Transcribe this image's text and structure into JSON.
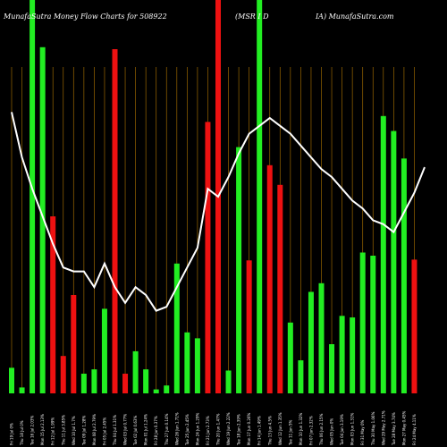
{
  "chart_data": {
    "type": "bar",
    "title_left": "MunafaSutra  Money Flow  Charts for 508922",
    "title_mid": "(MSR I  D",
    "title_right": "IA) MunafaSutra.com",
    "ylim": [
      0,
      100
    ],
    "grid": "vertical",
    "colors": {
      "up": "#22ee22",
      "down": "#ee1111",
      "grid": "#996600",
      "line": "#ffffff",
      "bg": "#000000"
    },
    "bars": [
      {
        "label": "Fri 19 Jul 0%",
        "value": 6.5,
        "dir": "up"
      },
      {
        "label": "Thu 18 Jul 0%",
        "value": 1.5,
        "dir": "up"
      },
      {
        "label": "Tue 16 Jul 2.03%",
        "value": 100,
        "dir": "up"
      },
      {
        "label": "Mon 15 Jul 2.13%",
        "value": 88,
        "dir": "up"
      },
      {
        "label": "Fri 12 Jul 1.99%",
        "value": 45,
        "dir": "down"
      },
      {
        "label": "Thu 11 Jul 3.85%",
        "value": 9.5,
        "dir": "down"
      },
      {
        "label": "Wed 10 Jul 1.7%",
        "value": 25,
        "dir": "down"
      },
      {
        "label": "Tue 09 Jul 1.28%",
        "value": 5,
        "dir": "up"
      },
      {
        "label": "Mon 08 Jul 2.79%",
        "value": 6.1,
        "dir": "up"
      },
      {
        "label": "Fri 05 Jul 2.45%",
        "value": 21.5,
        "dir": "up"
      },
      {
        "label": "Thu 04 Jul 1.31%",
        "value": 87.5,
        "dir": "down"
      },
      {
        "label": "Wed 03 Jul 0.77%",
        "value": 5,
        "dir": "down"
      },
      {
        "label": "Tue 02 Jul 0.63%",
        "value": 10.7,
        "dir": "up"
      },
      {
        "label": "Mon 01 Jul 1.24%",
        "value": 6.1,
        "dir": "up"
      },
      {
        "label": "Fri 28 Jun 0.37%",
        "value": 1,
        "dir": "up"
      },
      {
        "label": "Thu 27 Jun 0.14%",
        "value": 2,
        "dir": "up"
      },
      {
        "label": "Wed 26 Jun 1.71%",
        "value": 33,
        "dir": "up"
      },
      {
        "label": "Tue 25 Jun 2.45%",
        "value": 15.5,
        "dir": "up"
      },
      {
        "label": "Mon 24 Jun 1.29%",
        "value": 14,
        "dir": "up"
      },
      {
        "label": "Fri 21 Jun 2.73%",
        "value": 69,
        "dir": "down"
      },
      {
        "label": "Thu 20 Jun 1.47%",
        "value": 100,
        "dir": "down"
      },
      {
        "label": "Wed 19 Jun 2.22%",
        "value": 5.8,
        "dir": "up"
      },
      {
        "label": "Tue 18 Jun 2.39%",
        "value": 62.6,
        "dir": "up"
      },
      {
        "label": "Mon 17 Jun 0.26%",
        "value": 33.8,
        "dir": "down"
      },
      {
        "label": "Fri 14 Jun 1.49%",
        "value": 100,
        "dir": "up"
      },
      {
        "label": "Thu 13 Jun 4.5%",
        "value": 58,
        "dir": "down"
      },
      {
        "label": "Wed 12 Jun 1.35%",
        "value": 53,
        "dir": "down"
      },
      {
        "label": "Tue 11 Jun 5%",
        "value": 18,
        "dir": "up"
      },
      {
        "label": "Mon 10 Jun 1.32%",
        "value": 8.4,
        "dir": "up"
      },
      {
        "label": "Fri 07 Jun 2.32%",
        "value": 25.8,
        "dir": "up"
      },
      {
        "label": "Thu 06 Jun 2.15%",
        "value": 28,
        "dir": "up"
      },
      {
        "label": "Wed 05 Jun 0%",
        "value": 12.5,
        "dir": "up"
      },
      {
        "label": "Tue 04 Jun 3.19%",
        "value": 19.7,
        "dir": "up"
      },
      {
        "label": "Mon 03 Jun 1.31%",
        "value": 19.3,
        "dir": "up"
      },
      {
        "label": "Fri 31 May 0%",
        "value": 35.8,
        "dir": "up"
      },
      {
        "label": "Thu 30 May 1.06%",
        "value": 35,
        "dir": "up"
      },
      {
        "label": "Wed 29 May 2.71%",
        "value": 70.5,
        "dir": "up"
      },
      {
        "label": "Tue 28 May 3.74%",
        "value": 66.7,
        "dir": "up"
      },
      {
        "label": "Mon 27 May 0.45%",
        "value": 59.7,
        "dir": "up"
      },
      {
        "label": "Fri 24 May 4.11%",
        "value": 34,
        "dir": "down"
      }
    ],
    "line": [
      71.5,
      60,
      52,
      45,
      38,
      32,
      31,
      31,
      27,
      33,
      27,
      23,
      27,
      25,
      21,
      22,
      27,
      32,
      37,
      52,
      50,
      55,
      61,
      66,
      68,
      70,
      68,
      66,
      63,
      60,
      57,
      55,
      52,
      49,
      47,
      44,
      43,
      41,
      46,
      51,
      57.5
    ]
  }
}
